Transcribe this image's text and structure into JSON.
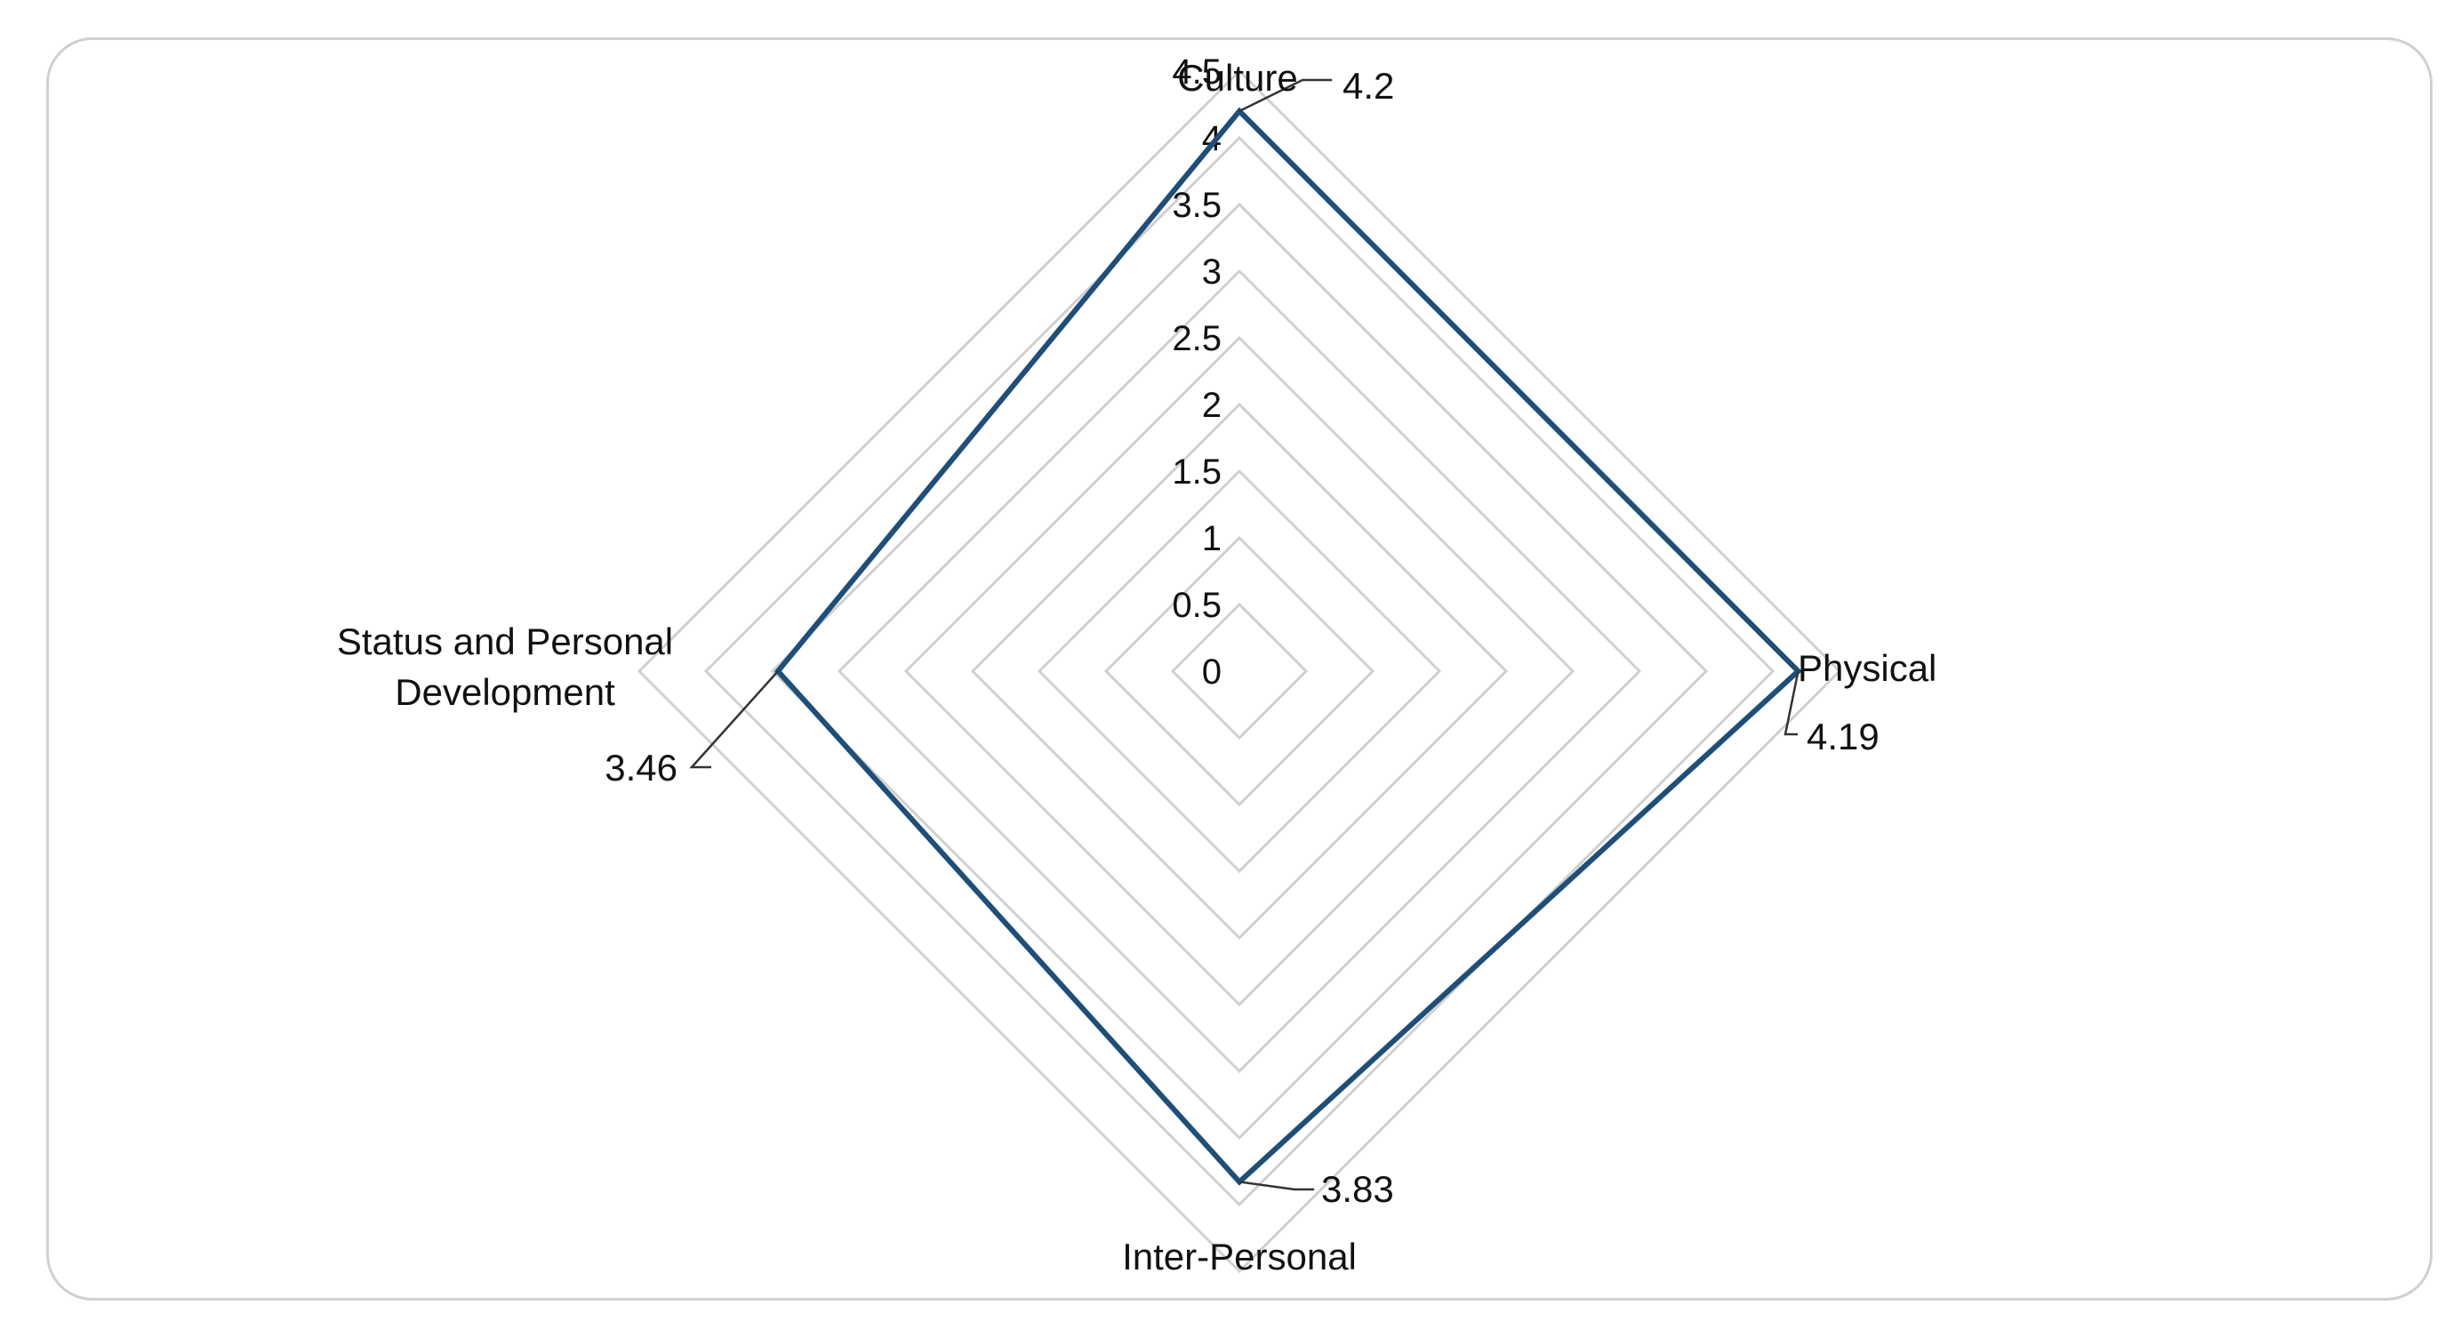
{
  "chart_data": {
    "type": "radar",
    "title": "",
    "categories": [
      "Culture",
      "Physical",
      "Inter-Personal",
      "Status and Personal Development"
    ],
    "series": [
      {
        "values": [
          4.2,
          4.19,
          3.83,
          3.46
        ]
      }
    ],
    "data_labels": [
      "4.2",
      "4.19",
      "3.83",
      "3.46"
    ],
    "rlim": [
      0,
      4.5
    ],
    "ticks": [
      "0",
      "0.5",
      "1",
      "1.5",
      "2",
      "2.5",
      "3",
      "3.5",
      "4",
      "4.5"
    ],
    "grid": true,
    "grid_color": "#d0d0d0",
    "series_color": "#1f4e79"
  }
}
